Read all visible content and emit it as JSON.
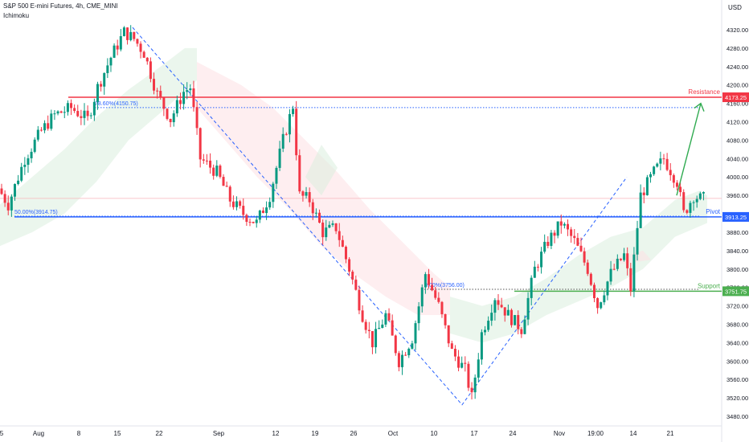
{
  "header": {
    "symbol": "S&P 500 E-mini Futures, 4h, CME_MINI",
    "indicator": "Ichimoku"
  },
  "chart_data": {
    "type": "candlestick",
    "yunit": "USD",
    "ylim": [
      3460,
      4340
    ],
    "y_ticks": [
      3480,
      3520,
      3560,
      3600,
      3640,
      3680,
      3720,
      3760,
      3800,
      3840,
      3880,
      3920,
      3960,
      4000,
      4040,
      4080,
      4120,
      4160,
      4200,
      4240,
      4280,
      4320
    ],
    "x_ticks": [
      "5",
      "Aug",
      "8",
      "15",
      "22",
      "Sep",
      "12",
      "19",
      "26",
      "Oct",
      "10",
      "17",
      "24",
      "Nov",
      "19:00",
      "14",
      "21"
    ],
    "levels": [
      {
        "name": "Resistance",
        "value": 4173.25,
        "label": "4173.25",
        "color": "#f23645"
      },
      {
        "name": "Pivot",
        "value": 3913.25,
        "label": "3913.25",
        "color": "#2962ff"
      },
      {
        "name": "Support",
        "value": 3751.75,
        "label": "3751.75",
        "color": "#4caf50"
      }
    ],
    "fib_labels": [
      {
        "text": "78.60%(4150.75)",
        "value": 4150.75
      },
      {
        "text": "50.00%(3914.75)",
        "value": 3914.75
      },
      {
        "text": "0.00%(3756.00)",
        "value": 3756.0
      }
    ],
    "close_price": 3953.5,
    "path_points": [
      {
        "t": 0,
        "p": 3975
      },
      {
        "t": 3,
        "p": 3940
      },
      {
        "t": 8,
        "p": 4040
      },
      {
        "t": 13,
        "p": 4100
      },
      {
        "t": 17,
        "p": 4135
      },
      {
        "t": 22,
        "p": 4150
      },
      {
        "t": 27,
        "p": 4125
      },
      {
        "t": 30,
        "p": 4195
      },
      {
        "t": 34,
        "p": 4260
      },
      {
        "t": 38,
        "p": 4315
      },
      {
        "t": 41,
        "p": 4300
      },
      {
        "t": 44,
        "p": 4270
      },
      {
        "t": 48,
        "p": 4180
      },
      {
        "t": 52,
        "p": 4125
      },
      {
        "t": 56,
        "p": 4185
      },
      {
        "t": 58,
        "p": 4195
      },
      {
        "t": 61,
        "p": 4040
      },
      {
        "t": 66,
        "p": 4010
      },
      {
        "t": 70,
        "p": 3950
      },
      {
        "t": 74,
        "p": 3920
      },
      {
        "t": 78,
        "p": 3900
      },
      {
        "t": 82,
        "p": 3960
      },
      {
        "t": 86,
        "p": 4080
      },
      {
        "t": 89,
        "p": 4155
      },
      {
        "t": 91,
        "p": 3960
      },
      {
        "t": 94,
        "p": 3950
      },
      {
        "t": 98,
        "p": 3880
      },
      {
        "t": 102,
        "p": 3890
      },
      {
        "t": 106,
        "p": 3800
      },
      {
        "t": 110,
        "p": 3700
      },
      {
        "t": 113,
        "p": 3640
      },
      {
        "t": 117,
        "p": 3700
      },
      {
        "t": 121,
        "p": 3600
      },
      {
        "t": 125,
        "p": 3650
      },
      {
        "t": 129,
        "p": 3790
      },
      {
        "t": 133,
        "p": 3720
      },
      {
        "t": 137,
        "p": 3620
      },
      {
        "t": 141,
        "p": 3580
      },
      {
        "t": 143,
        "p": 3520
      },
      {
        "t": 146,
        "p": 3660
      },
      {
        "t": 150,
        "p": 3740
      },
      {
        "t": 154,
        "p": 3700
      },
      {
        "t": 158,
        "p": 3670
      },
      {
        "t": 162,
        "p": 3800
      },
      {
        "t": 166,
        "p": 3860
      },
      {
        "t": 170,
        "p": 3900
      },
      {
        "t": 174,
        "p": 3860
      },
      {
        "t": 178,
        "p": 3800
      },
      {
        "t": 181,
        "p": 3720
      },
      {
        "t": 185,
        "p": 3790
      },
      {
        "t": 189,
        "p": 3830
      },
      {
        "t": 191,
        "p": 3756
      },
      {
        "t": 194,
        "p": 3960
      },
      {
        "t": 198,
        "p": 4010
      },
      {
        "t": 201,
        "p": 4040
      },
      {
        "t": 205,
        "p": 3990
      },
      {
        "t": 207,
        "p": 3920
      },
      {
        "t": 210,
        "p": 3960
      },
      {
        "t": 212,
        "p": 3953
      }
    ]
  }
}
